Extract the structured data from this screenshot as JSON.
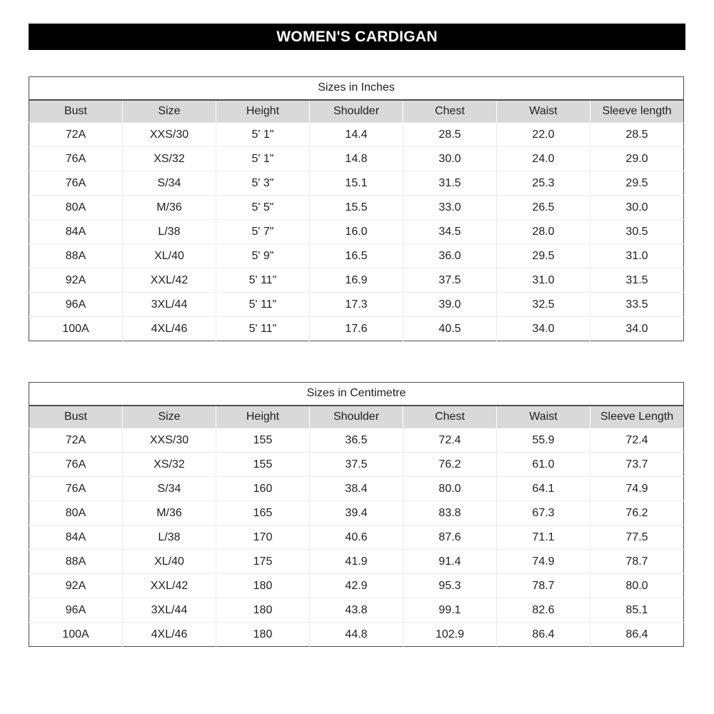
{
  "banner": {
    "title": "WOMEN'S CARDIGAN"
  },
  "tables": [
    {
      "caption": "Sizes in Inches",
      "columns": [
        "Bust",
        "Size",
        "Height",
        "Shoulder",
        "Chest",
        "Waist",
        "Sleeve length"
      ],
      "rows": [
        [
          "72A",
          "XXS/30",
          "5' 1\"",
          "14.4",
          "28.5",
          "22.0",
          "28.5"
        ],
        [
          "76A",
          "XS/32",
          "5' 1\"",
          "14.8",
          "30.0",
          "24.0",
          "29.0"
        ],
        [
          "76A",
          "S/34",
          "5' 3\"",
          "15.1",
          "31.5",
          "25.3",
          "29.5"
        ],
        [
          "80A",
          "M/36",
          "5' 5\"",
          "15.5",
          "33.0",
          "26.5",
          "30.0"
        ],
        [
          "84A",
          "L/38",
          "5' 7\"",
          "16.0",
          "34.5",
          "28.0",
          "30.5"
        ],
        [
          "88A",
          "XL/40",
          "5' 9\"",
          "16.5",
          "36.0",
          "29.5",
          "31.0"
        ],
        [
          "92A",
          "XXL/42",
          "5' 11\"",
          "16.9",
          "37.5",
          "31.0",
          "31.5"
        ],
        [
          "96A",
          "3XL/44",
          "5' 11\"",
          "17.3",
          "39.0",
          "32.5",
          "33.5"
        ],
        [
          "100A",
          "4XL/46",
          "5' 11\"",
          "17.6",
          "40.5",
          "34.0",
          "34.0"
        ]
      ]
    },
    {
      "caption": "Sizes in Centimetre",
      "columns": [
        "Bust",
        "Size",
        "Height",
        "Shoulder",
        "Chest",
        "Waist",
        "Sleeve Length"
      ],
      "rows": [
        [
          "72A",
          "XXS/30",
          "155",
          "36.5",
          "72.4",
          "55.9",
          "72.4"
        ],
        [
          "76A",
          "XS/32",
          "155",
          "37.5",
          "76.2",
          "61.0",
          "73.7"
        ],
        [
          "76A",
          "S/34",
          "160",
          "38.4",
          "80.0",
          "64.1",
          "74.9"
        ],
        [
          "80A",
          "M/36",
          "165",
          "39.4",
          "83.8",
          "67.3",
          "76.2"
        ],
        [
          "84A",
          "L/38",
          "170",
          "40.6",
          "87.6",
          "71.1",
          "77.5"
        ],
        [
          "88A",
          "XL/40",
          "175",
          "41.9",
          "91.4",
          "74.9",
          "78.7"
        ],
        [
          "92A",
          "XXL/42",
          "180",
          "42.9",
          "95.3",
          "78.7",
          "80.0"
        ],
        [
          "96A",
          "3XL/44",
          "180",
          "43.8",
          "99.1",
          "82.6",
          "85.1"
        ],
        [
          "100A",
          "4XL/46",
          "180",
          "44.8",
          "102.9",
          "86.4",
          "86.4"
        ]
      ]
    }
  ],
  "colors": {
    "banner_bg": "#000000",
    "banner_text": "#ffffff",
    "header_row_bg": "#d9d9d9",
    "table_border": "#4d4d4d",
    "grid_line": "#ececec",
    "text_color": "#1f1f1f",
    "page_bg": "#ffffff"
  }
}
